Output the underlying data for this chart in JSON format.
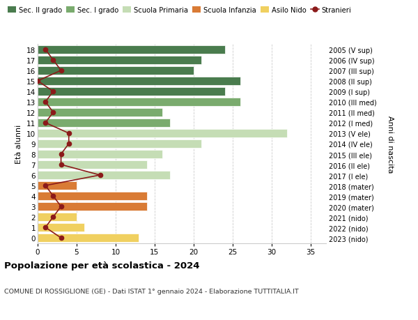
{
  "ages": [
    18,
    17,
    16,
    15,
    14,
    13,
    12,
    11,
    10,
    9,
    8,
    7,
    6,
    5,
    4,
    3,
    2,
    1,
    0
  ],
  "anni_nascita": [
    "2005 (V sup)",
    "2006 (IV sup)",
    "2007 (III sup)",
    "2008 (II sup)",
    "2009 (I sup)",
    "2010 (III med)",
    "2011 (II med)",
    "2012 (I med)",
    "2013 (V ele)",
    "2014 (IV ele)",
    "2015 (III ele)",
    "2016 (II ele)",
    "2017 (I ele)",
    "2018 (mater)",
    "2019 (mater)",
    "2020 (mater)",
    "2021 (nido)",
    "2022 (nido)",
    "2023 (nido)"
  ],
  "bar_values": [
    24,
    21,
    20,
    26,
    24,
    26,
    16,
    17,
    32,
    21,
    16,
    14,
    17,
    5,
    14,
    14,
    5,
    6,
    13
  ],
  "bar_colors": [
    "#4a7c4e",
    "#4a7c4e",
    "#4a7c4e",
    "#4a7c4e",
    "#4a7c4e",
    "#7aab6e",
    "#7aab6e",
    "#7aab6e",
    "#c5ddb5",
    "#c5ddb5",
    "#c5ddb5",
    "#c5ddb5",
    "#c5ddb5",
    "#d97b35",
    "#d97b35",
    "#d97b35",
    "#f0d060",
    "#f0d060",
    "#f0d060"
  ],
  "stranieri_values": [
    1,
    2,
    3,
    0,
    2,
    1,
    2,
    1,
    4,
    4,
    3,
    3,
    8,
    1,
    2,
    3,
    2,
    1,
    3
  ],
  "stranieri_color": "#8b1a1a",
  "legend_labels": [
    "Sec. II grado",
    "Sec. I grado",
    "Scuola Primaria",
    "Scuola Infanzia",
    "Asilo Nido",
    "Stranieri"
  ],
  "legend_colors": [
    "#4a7c4e",
    "#7aab6e",
    "#c5ddb5",
    "#d97b35",
    "#f0d060",
    "#8b1a1a"
  ],
  "ylabel_left": "Età alunni",
  "ylabel_right": "Anni di nascita",
  "title": "Popolazione per età scolastica - 2024",
  "subtitle": "COMUNE DI ROSSIGLIONE (GE) - Dati ISTAT 1° gennaio 2024 - Elaborazione TUTTITALIA.IT",
  "xlim": [
    0,
    37
  ],
  "background_color": "#ffffff",
  "grid_color": "#cccccc"
}
